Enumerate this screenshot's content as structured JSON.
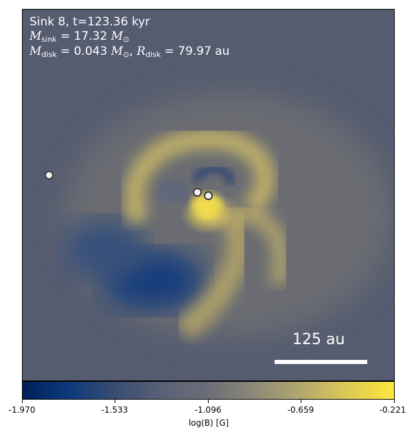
{
  "annotation": {
    "title": "Sink 8, t=123.36 kyr",
    "msink_symbol": "M",
    "msink_sub": "sink",
    "msink_value": " = 17.32 ",
    "msink_unit": "M",
    "msink_unit_sub": "⊙",
    "mdisk_symbol": "M",
    "mdisk_sub": "disk",
    "mdisk_value": " = 0.043 ",
    "mdisk_unit": "M",
    "mdisk_unit_sub": "⊙",
    "mdisk_sep": ", ",
    "rdisk_symbol": "R",
    "rdisk_sub": "disk",
    "rdisk_value": " = 79.97 au"
  },
  "scalebar": {
    "label": "125 au"
  },
  "colorbar": {
    "ticks": [
      "-1.970",
      "-1.533",
      "-1.096",
      "-0.659",
      "-0.221"
    ],
    "label": "log(B) [G]",
    "colors": [
      "#00205a",
      "#3a4d72",
      "#6c6e78",
      "#b3a86e",
      "#fde73a"
    ]
  }
}
